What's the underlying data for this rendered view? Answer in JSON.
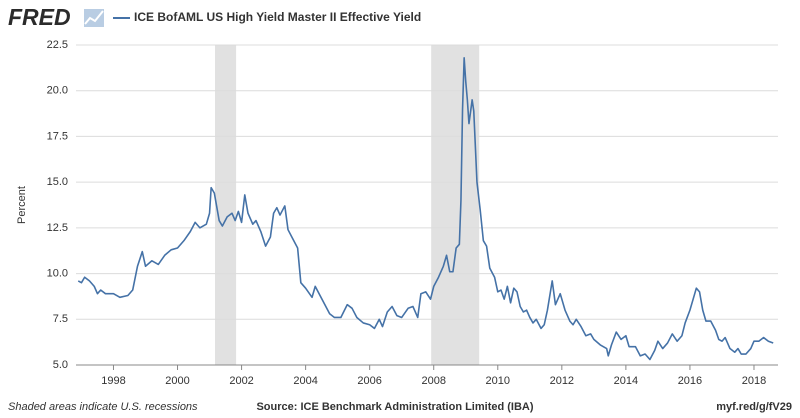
{
  "chart_data": {
    "type": "line",
    "logo": "FRED",
    "ylabel": "Percent",
    "note": "Shaded areas indicate U.S. recessions",
    "source": "Source: ICE Benchmark Administration Limited (IBA)",
    "link": "myf.red/g/fV29",
    "grid": true,
    "xlim": [
      1996.83,
      2018.75
    ],
    "xticks": [
      1998,
      2000,
      2002,
      2004,
      2006,
      2008,
      2010,
      2012,
      2014,
      2016,
      2018
    ],
    "ylim": [
      5,
      22.5
    ],
    "yticks": [
      {
        "value": 5,
        "label": "5.0"
      },
      7.5,
      {
        "value": 10,
        "label": "10.0"
      },
      12.5,
      {
        "value": 15,
        "label": "15.0"
      },
      17.5,
      {
        "value": 20,
        "label": "20.0"
      },
      22.5
    ],
    "recessions": [
      [
        2001.17,
        2001.83
      ],
      [
        2007.92,
        2009.42
      ]
    ],
    "recession_color": "#e1e1e1",
    "x": [
      1996.9,
      1997.0,
      1997.1,
      1997.25,
      1997.4,
      1997.5,
      1997.6,
      1997.75,
      1998.0,
      1998.2,
      1998.45,
      1998.6,
      1998.75,
      1998.9,
      1999.0,
      1999.2,
      1999.4,
      1999.6,
      1999.8,
      2000.0,
      2000.2,
      2000.4,
      2000.55,
      2000.7,
      2000.9,
      2001.0,
      2001.05,
      2001.15,
      2001.3,
      2001.4,
      2001.55,
      2001.7,
      2001.8,
      2001.9,
      2002.0,
      2002.1,
      2002.2,
      2002.35,
      2002.45,
      2002.6,
      2002.75,
      2002.9,
      2003.0,
      2003.1,
      2003.2,
      2003.35,
      2003.45,
      2003.6,
      2003.75,
      2003.85,
      2004.0,
      2004.2,
      2004.3,
      2004.45,
      2004.6,
      2004.75,
      2004.9,
      2005.1,
      2005.3,
      2005.45,
      2005.6,
      2005.8,
      2006.0,
      2006.15,
      2006.3,
      2006.4,
      2006.55,
      2006.7,
      2006.85,
      2007.0,
      2007.2,
      2007.35,
      2007.5,
      2007.6,
      2007.75,
      2007.9,
      2008.0,
      2008.15,
      2008.3,
      2008.4,
      2008.5,
      2008.6,
      2008.7,
      2008.8,
      2008.85,
      2008.9,
      2008.95,
      2009.0,
      2009.05,
      2009.1,
      2009.2,
      2009.25,
      2009.35,
      2009.45,
      2009.55,
      2009.65,
      2009.75,
      2009.9,
      2010.0,
      2010.1,
      2010.2,
      2010.3,
      2010.4,
      2010.5,
      2010.6,
      2010.7,
      2010.8,
      2010.9,
      2011.0,
      2011.1,
      2011.2,
      2011.35,
      2011.45,
      2011.55,
      2011.7,
      2011.8,
      2011.95,
      2012.1,
      2012.25,
      2012.35,
      2012.45,
      2012.6,
      2012.75,
      2012.9,
      2013.0,
      2013.2,
      2013.4,
      2013.45,
      2013.55,
      2013.7,
      2013.85,
      2014.0,
      2014.1,
      2014.3,
      2014.45,
      2014.6,
      2014.75,
      2014.9,
      2015.0,
      2015.15,
      2015.3,
      2015.45,
      2015.6,
      2015.75,
      2015.85,
      2016.0,
      2016.1,
      2016.2,
      2016.3,
      2016.4,
      2016.5,
      2016.65,
      2016.8,
      2016.9,
      2017.0,
      2017.1,
      2017.25,
      2017.4,
      2017.5,
      2017.6,
      2017.75,
      2017.9,
      2018.0,
      2018.15,
      2018.3,
      2018.45,
      2018.6
    ],
    "series": [
      {
        "name": "ICE BofAML US High Yield Master II Effective Yield",
        "color": "#4572a7",
        "values": [
          9.6,
          9.5,
          9.8,
          9.6,
          9.3,
          8.9,
          9.1,
          8.9,
          8.9,
          8.7,
          8.8,
          9.1,
          10.4,
          11.2,
          10.4,
          10.7,
          10.5,
          11.0,
          11.3,
          11.4,
          11.8,
          12.3,
          12.8,
          12.5,
          12.7,
          13.3,
          14.7,
          14.4,
          12.9,
          12.6,
          13.1,
          13.3,
          12.9,
          13.4,
          12.8,
          14.3,
          13.3,
          12.7,
          12.9,
          12.3,
          11.5,
          12.0,
          13.3,
          13.6,
          13.2,
          13.7,
          12.4,
          11.9,
          11.4,
          9.5,
          9.2,
          8.7,
          9.3,
          8.8,
          8.3,
          7.8,
          7.6,
          7.6,
          8.3,
          8.1,
          7.6,
          7.3,
          7.2,
          7.0,
          7.5,
          7.1,
          7.9,
          8.2,
          7.7,
          7.6,
          8.1,
          8.2,
          7.6,
          8.9,
          9.0,
          8.6,
          9.3,
          9.8,
          10.4,
          11.0,
          10.1,
          10.1,
          11.4,
          11.6,
          14.0,
          19.0,
          21.8,
          20.5,
          19.5,
          18.2,
          19.5,
          18.9,
          15.0,
          13.5,
          11.8,
          11.5,
          10.3,
          9.8,
          9.0,
          9.1,
          8.6,
          9.3,
          8.4,
          9.2,
          9.0,
          8.2,
          7.9,
          8.0,
          7.6,
          7.3,
          7.5,
          7.0,
          7.2,
          8.0,
          9.6,
          8.3,
          8.9,
          8.0,
          7.4,
          7.2,
          7.5,
          7.1,
          6.6,
          6.7,
          6.4,
          6.1,
          5.9,
          5.5,
          6.1,
          6.8,
          6.4,
          6.6,
          6.0,
          6.0,
          5.5,
          5.6,
          5.3,
          5.8,
          6.3,
          5.9,
          6.2,
          6.7,
          6.3,
          6.6,
          7.3,
          8.0,
          8.6,
          9.2,
          9.0,
          8.0,
          7.4,
          7.4,
          6.9,
          6.4,
          6.3,
          6.5,
          5.9,
          5.7,
          5.9,
          5.6,
          5.6,
          5.9,
          6.3,
          6.3,
          6.5,
          6.3,
          6.2
        ]
      }
    ]
  }
}
